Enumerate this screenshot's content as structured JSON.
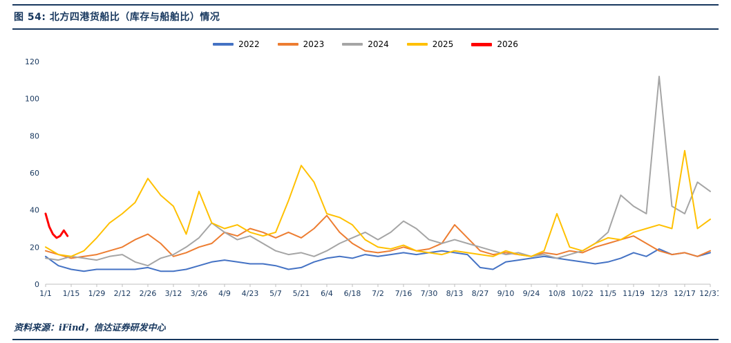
{
  "header": {
    "title": "图 54: 北方四港货船比（库存与船舶比）情况"
  },
  "footer": {
    "source": "资料来源：iFind，信达证券研发中心"
  },
  "colors": {
    "accent_navy": "#17375E",
    "axis_gray": "#BFBFBF",
    "series_2022": "#4472C4",
    "series_2023": "#ED7D31",
    "series_2024": "#A5A5A5",
    "series_2025": "#FFC000",
    "series_2026": "#FF0000"
  },
  "chart_data": {
    "type": "line",
    "title": "北方四港货船比（库存与船舶比）情况",
    "xlabel": "",
    "ylabel": "",
    "ylim": [
      0,
      120
    ],
    "yticks": [
      0,
      20,
      40,
      60,
      80,
      100,
      120
    ],
    "xticks": [
      "1/1",
      "1/15",
      "1/29",
      "2/12",
      "2/26",
      "3/12",
      "3/26",
      "4/9",
      "4/23",
      "5/7",
      "5/21",
      "6/4",
      "6/18",
      "7/2",
      "7/16",
      "7/30",
      "8/13",
      "8/27",
      "9/10",
      "9/24",
      "10/8",
      "10/22",
      "11/5",
      "11/19",
      "12/3",
      "12/17",
      "12/31"
    ],
    "legend_position": "top-center",
    "grid": false,
    "x_dates_weekly": [
      "1/1",
      "1/8",
      "1/15",
      "1/22",
      "1/29",
      "2/5",
      "2/12",
      "2/19",
      "2/26",
      "3/5",
      "3/12",
      "3/19",
      "3/26",
      "4/2",
      "4/9",
      "4/16",
      "4/23",
      "4/30",
      "5/7",
      "5/14",
      "5/21",
      "5/28",
      "6/4",
      "6/11",
      "6/18",
      "6/25",
      "7/2",
      "7/9",
      "7/16",
      "7/23",
      "7/30",
      "8/6",
      "8/13",
      "8/20",
      "8/27",
      "9/3",
      "9/10",
      "9/17",
      "9/24",
      "10/1",
      "10/8",
      "10/15",
      "10/22",
      "10/29",
      "11/5",
      "11/12",
      "11/19",
      "11/26",
      "12/3",
      "12/10",
      "12/17",
      "12/24",
      "12/31"
    ],
    "series": [
      {
        "name": "2022",
        "color": "#4472C4",
        "values": [
          15,
          10,
          8,
          7,
          8,
          8,
          8,
          8,
          9,
          7,
          7,
          8,
          10,
          12,
          13,
          12,
          11,
          11,
          10,
          8,
          9,
          12,
          14,
          15,
          14,
          16,
          15,
          16,
          17,
          16,
          17,
          18,
          17,
          16,
          9,
          8,
          12,
          13,
          14,
          15,
          14,
          13,
          12,
          11,
          12,
          14,
          17,
          15,
          19,
          16,
          17,
          15,
          17
        ]
      },
      {
        "name": "2023",
        "color": "#ED7D31",
        "values": [
          18,
          16,
          14,
          15,
          16,
          18,
          20,
          24,
          27,
          22,
          15,
          17,
          20,
          22,
          28,
          26,
          30,
          28,
          25,
          28,
          25,
          30,
          37,
          28,
          22,
          18,
          17,
          18,
          20,
          18,
          19,
          22,
          32,
          25,
          18,
          16,
          17,
          16,
          15,
          17,
          16,
          18,
          17,
          20,
          22,
          24,
          26,
          22,
          18,
          16,
          17,
          15,
          18
        ]
      },
      {
        "name": "2024",
        "color": "#A5A5A5",
        "values": [
          14,
          13,
          15,
          14,
          13,
          15,
          16,
          12,
          10,
          14,
          16,
          20,
          25,
          33,
          28,
          24,
          26,
          22,
          18,
          16,
          17,
          15,
          18,
          22,
          25,
          28,
          24,
          28,
          34,
          30,
          24,
          22,
          24,
          22,
          20,
          18,
          16,
          17,
          15,
          16,
          14,
          16,
          18,
          22,
          28,
          48,
          42,
          38,
          112,
          42,
          38,
          55,
          50
        ]
      },
      {
        "name": "2025",
        "color": "#FFC000",
        "values": [
          20,
          16,
          15,
          18,
          25,
          33,
          38,
          44,
          57,
          48,
          42,
          27,
          50,
          33,
          30,
          32,
          28,
          26,
          28,
          45,
          64,
          55,
          38,
          36,
          32,
          24,
          20,
          19,
          21,
          18,
          17,
          16,
          18,
          17,
          16,
          15,
          18,
          16,
          15,
          18,
          38,
          20,
          18,
          22,
          25,
          24,
          28,
          30,
          32,
          30,
          72,
          30,
          35
        ]
      },
      {
        "name": "2026",
        "color": "#FF0000",
        "dates": [
          "1/1",
          "1/3",
          "1/5",
          "1/7",
          "1/9",
          "1/11",
          "1/13"
        ],
        "values": [
          38,
          31,
          27,
          25,
          26,
          29,
          26
        ]
      }
    ]
  }
}
